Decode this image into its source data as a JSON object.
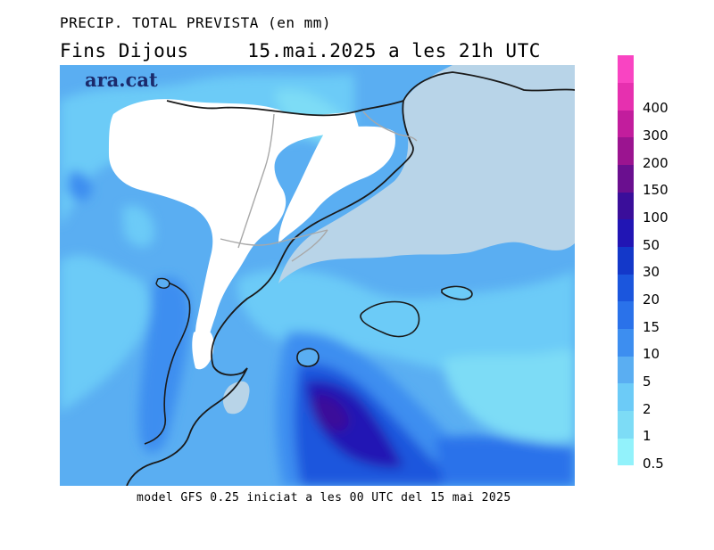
{
  "header": {
    "title": "PRECIP. TOTAL PREVISTA (en mm)",
    "subtitle": "Fins Dijous     15.mai.2025 a les 21h UTC"
  },
  "map": {
    "logo": "ara.cat",
    "region": "Catalonia, Aragon, Valencia coast and Balearic Islands",
    "colors": {
      "land_no_rain": "#ffffff",
      "sea": "#b8d4e8",
      "coast": "#1a1a1a",
      "borders": "#a8a8a8"
    }
  },
  "footer": {
    "text": "model GFS 0.25 iniciat a les 00 UTC del 15 mai 2025"
  },
  "legend": {
    "bins": [
      {
        "label": "0.5",
        "color": "#92f2fb"
      },
      {
        "label": "1",
        "color": "#7ddcf6"
      },
      {
        "label": "2",
        "color": "#6ccbf7"
      },
      {
        "label": "5",
        "color": "#5aaef2"
      },
      {
        "label": "10",
        "color": "#3d8ef0"
      },
      {
        "label": "15",
        "color": "#2a72ea"
      },
      {
        "label": "20",
        "color": "#1b56dd"
      },
      {
        "label": "30",
        "color": "#1338c9"
      },
      {
        "label": "50",
        "color": "#2115b4"
      },
      {
        "label": "100",
        "color": "#3a0e9a"
      },
      {
        "label": "150",
        "color": "#6a0f8f"
      },
      {
        "label": "200",
        "color": "#9b1490"
      },
      {
        "label": "300",
        "color": "#c21d9d"
      },
      {
        "label": "400",
        "color": "#e630af"
      },
      {
        "label": "",
        "color": "#f944c2"
      }
    ]
  }
}
